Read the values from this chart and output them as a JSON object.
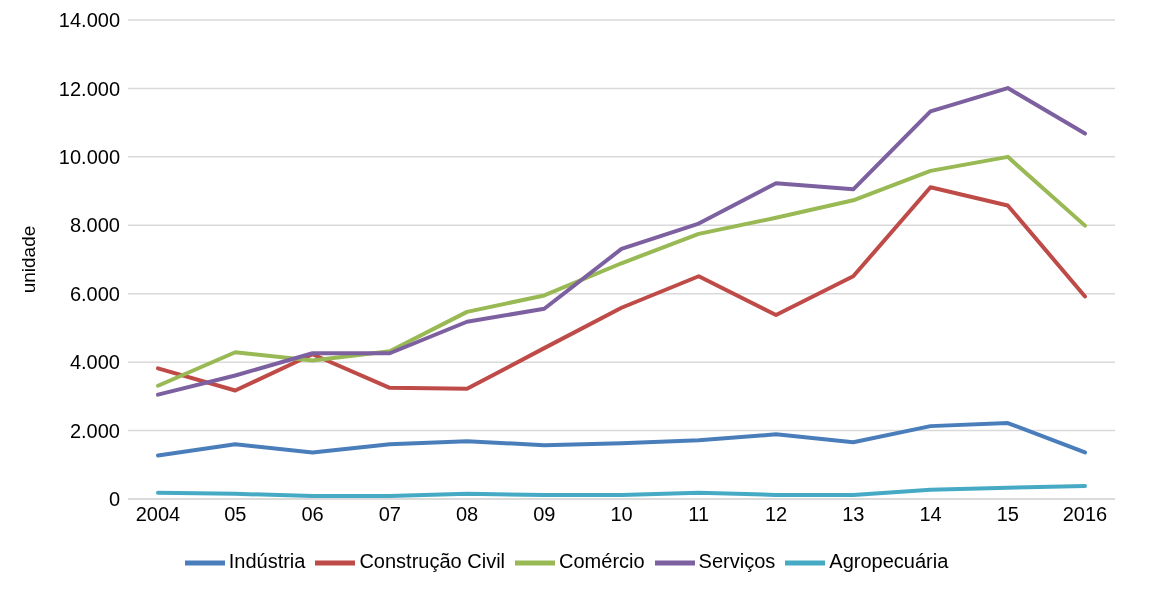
{
  "chart_data": {
    "type": "line",
    "ylabel": "unidade",
    "categories": [
      "2004",
      "05",
      "06",
      "07",
      "08",
      "09",
      "10",
      "11",
      "12",
      "13",
      "14",
      "15",
      "2016"
    ],
    "series": [
      {
        "name": "Indústria",
        "color": "#4a7ebb",
        "values": [
          1270,
          1600,
          1360,
          1600,
          1690,
          1570,
          1630,
          1720,
          1890,
          1660,
          2130,
          2220,
          1360
        ]
      },
      {
        "name": "Construção Civil",
        "color": "#be4b48",
        "values": [
          3820,
          3170,
          4230,
          3250,
          3220,
          4410,
          5590,
          6510,
          5380,
          6510,
          9110,
          8580,
          5920
        ]
      },
      {
        "name": "Comércio",
        "color": "#98b954",
        "values": [
          3310,
          4290,
          4050,
          4320,
          5470,
          5950,
          6890,
          7750,
          8220,
          8730,
          9590,
          10000,
          7990
        ]
      },
      {
        "name": "Serviços",
        "color": "#7d60a0",
        "values": [
          3050,
          3610,
          4260,
          4260,
          5180,
          5560,
          7310,
          8050,
          9230,
          9050,
          11330,
          12010,
          10680
        ]
      },
      {
        "name": "Agropecuária",
        "color": "#46aac5",
        "values": [
          180,
          150,
          90,
          90,
          150,
          120,
          120,
          180,
          120,
          120,
          270,
          330,
          380
        ]
      }
    ],
    "ylim": [
      0,
      14000
    ],
    "yticks": [
      0,
      {
        "value": 2000,
        "label": "2.000"
      },
      {
        "value": 4000,
        "label": "4.000"
      },
      {
        "value": 6000,
        "label": "6.000"
      },
      {
        "value": 8000,
        "label": "8.000"
      },
      {
        "value": 10000,
        "label": "10.000"
      },
      {
        "value": 12000,
        "label": "12.000"
      },
      {
        "value": 14000,
        "label": "14.000"
      }
    ],
    "grid": "y",
    "legend": "bottom",
    "marker": "none",
    "line_style": "solid"
  }
}
